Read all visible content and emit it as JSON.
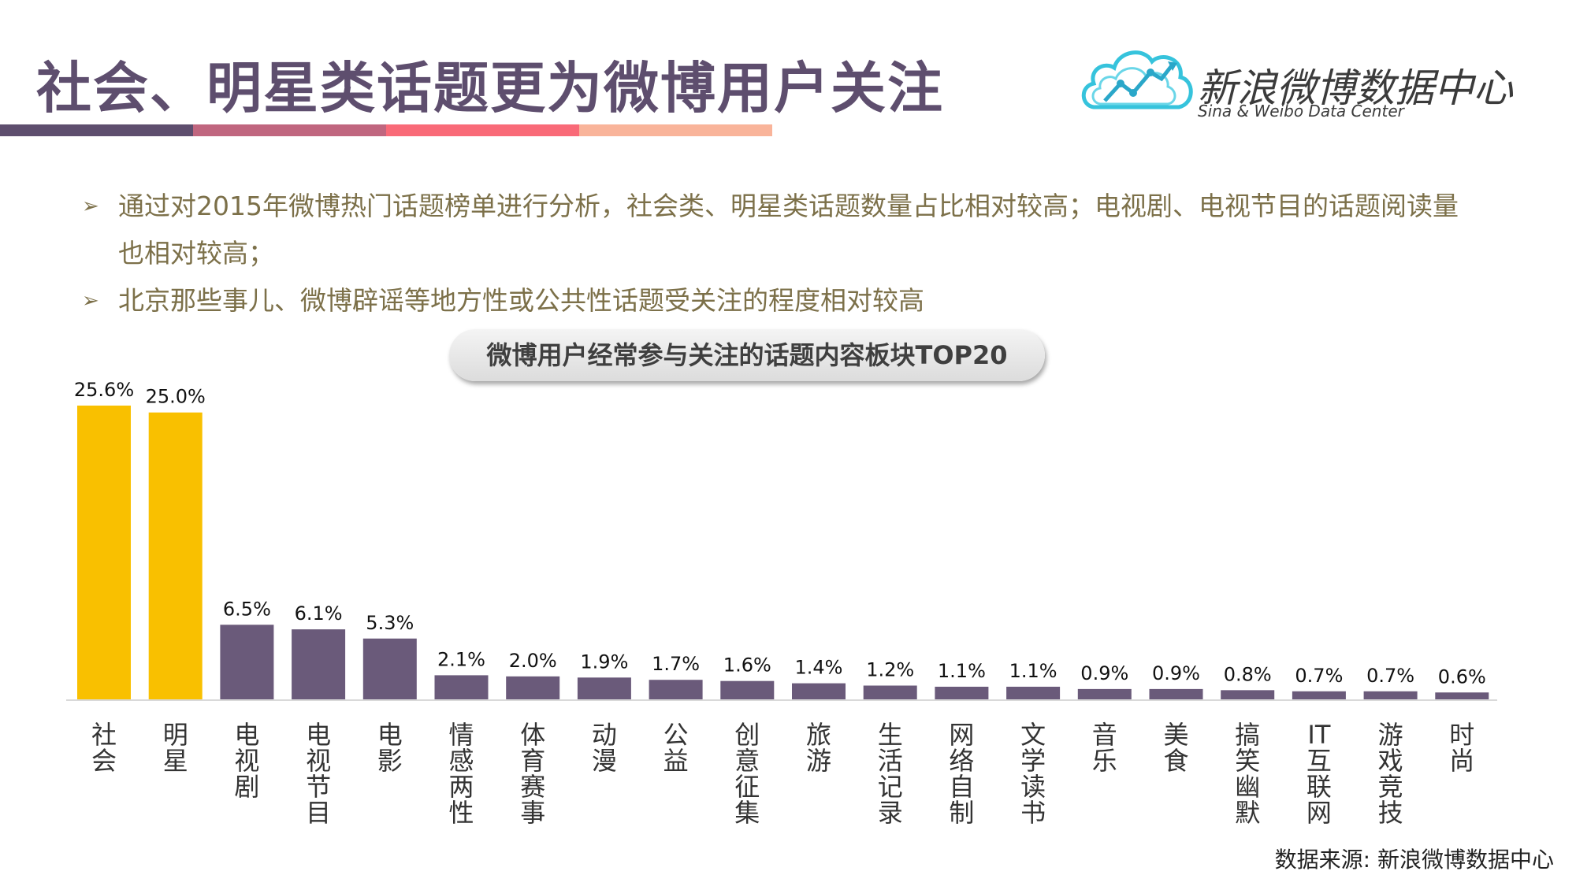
{
  "header": {
    "title": "社会、明星类话题更为微博用户关注",
    "stripe_colors": [
      "#5e4e6e",
      "#c0667f",
      "#f96a78",
      "#f9b49a"
    ]
  },
  "logo": {
    "name": "新浪微博数据中心",
    "subtitle": "Sina & Weibo Data Center",
    "icon": "cloud-chart-icon"
  },
  "bullets": [
    {
      "icon": "arrow-bullet-icon",
      "text": "通过对2015年微博热门话题榜单进行分析，社会类、明星类话题数量占比相对较高；电视剧、电视节目的话题阅读量也相对较高；"
    },
    {
      "icon": "arrow-bullet-icon",
      "text": "北京那些事儿、微博辟谣等地方性或公共性话题受关注的程度相对较高"
    }
  ],
  "chart_data": {
    "type": "bar",
    "title": "微博用户经常参与关注的话题内容板块TOP20",
    "categories": [
      "社会",
      "明星",
      "电视剧",
      "电视节目",
      "电影",
      "情感两性",
      "体育赛事",
      "动漫",
      "公益",
      "创意征集",
      "旅游",
      "生活记录",
      "网络自制",
      "文学读书",
      "音乐",
      "美食",
      "搞笑幽默",
      "IT互联网",
      "游戏竞技",
      "时尚"
    ],
    "values": [
      25.6,
      25.0,
      6.5,
      6.1,
      5.3,
      2.1,
      2.0,
      1.9,
      1.7,
      1.6,
      1.4,
      1.2,
      1.1,
      1.1,
      0.9,
      0.9,
      0.8,
      0.7,
      0.7,
      0.6
    ],
    "data_labels": [
      "25.6%",
      "25.0%",
      "6.5%",
      "6.1%",
      "5.3%",
      "2.1%",
      "2.0%",
      "1.9%",
      "1.7%",
      "1.6%",
      "1.4%",
      "1.2%",
      "1.1%",
      "1.1%",
      "0.9%",
      "0.9%",
      "0.8%",
      "0.7%",
      "0.7%",
      "0.6%"
    ],
    "ylim": [
      0,
      25.6
    ],
    "grid": false,
    "legend": "none",
    "highlight_color": "#f9c000",
    "bar_color": "#6a5a7a",
    "highlight_count": 2
  },
  "footer": {
    "source": "数据来源: 新浪微博数据中心"
  }
}
